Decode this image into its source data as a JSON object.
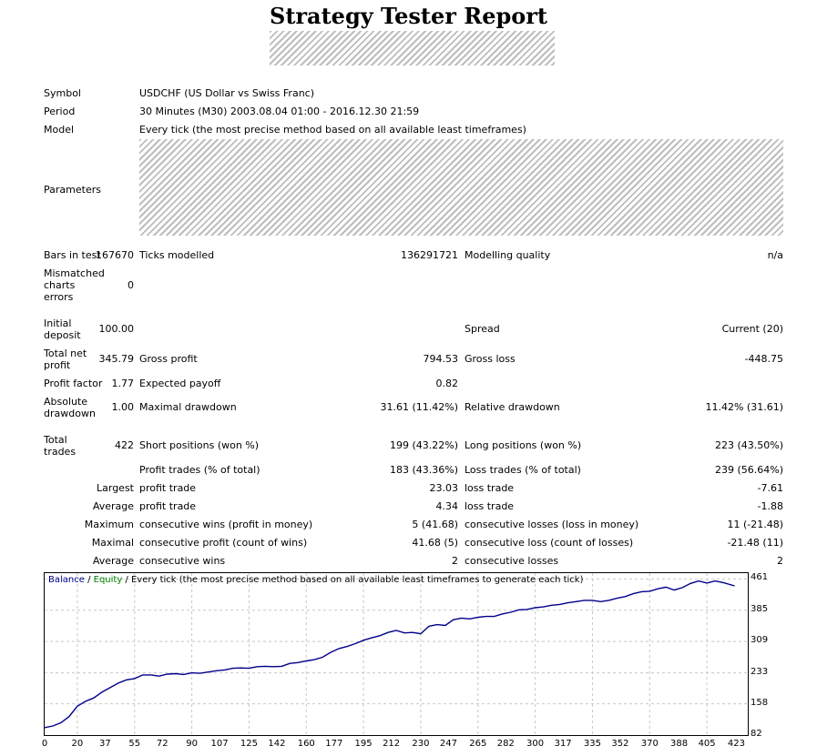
{
  "title": "Strategy Tester Report",
  "labels": {
    "symbol": "Symbol",
    "period": "Period",
    "model": "Model",
    "parameters": "Parameters",
    "bars_in_test": "Bars in test",
    "ticks_modelled": "Ticks modelled",
    "modelling_quality": "Modelling quality",
    "mismatched_1": "Mismatched",
    "mismatched_2": "charts",
    "mismatched_3": "errors",
    "initial_deposit_1": "Initial",
    "initial_deposit_2": "deposit",
    "spread": "Spread",
    "total_net_profit_1": "Total net",
    "total_net_profit_2": "profit",
    "gross_profit": "Gross profit",
    "gross_loss": "Gross loss",
    "profit_factor": "Profit factor",
    "expected_payoff": "Expected payoff",
    "absolute_drawdown_1": "Absolute",
    "absolute_drawdown_2": "drawdown",
    "maximal_drawdown": "Maximal drawdown",
    "relative_drawdown": "Relative drawdown",
    "total_trades_1": "Total",
    "total_trades_2": "trades",
    "short_positions": "Short positions (won %)",
    "long_positions": "Long positions (won %)",
    "profit_trades": "Profit trades (% of total)",
    "loss_trades": "Loss trades (% of total)",
    "largest": "Largest",
    "average": "Average",
    "maximum": "Maximum",
    "maximal": "Maximal",
    "profit_trade": "profit trade",
    "loss_trade": "loss trade",
    "consecutive_wins_money": "consecutive wins (profit in money)",
    "consecutive_losses_money": "consecutive losses (loss in money)",
    "consecutive_profit_count": "consecutive profit (count of wins)",
    "consecutive_loss_count": "consecutive loss (count of losses)",
    "consecutive_wins": "consecutive wins",
    "consecutive_losses": "consecutive losses"
  },
  "values": {
    "symbol": "USDCHF (US Dollar vs Swiss Franc)",
    "period": "30 Minutes (M30) 2003.08.04 01:00 - 2016.12.30 21:59",
    "model": "Every tick (the most precise method based on all available least timeframes)",
    "bars_in_test": "167670",
    "ticks_modelled": "136291721",
    "modelling_quality": "n/a",
    "mismatched": "0",
    "initial_deposit": "100.00",
    "spread": "Current (20)",
    "total_net_profit": "345.79",
    "gross_profit": "794.53",
    "gross_loss": "-448.75",
    "profit_factor": "1.77",
    "expected_payoff": "0.82",
    "absolute_drawdown": "1.00",
    "maximal_drawdown": "31.61 (11.42%)",
    "relative_drawdown": "11.42% (31.61)",
    "total_trades": "422",
    "short_positions": "199 (43.22%)",
    "long_positions": "223 (43.50%)",
    "profit_trades": "183 (43.36%)",
    "loss_trades": "239 (56.64%)",
    "largest_profit": "23.03",
    "largest_loss": "-7.61",
    "average_profit": "4.34",
    "average_loss": "-1.88",
    "max_consec_wins": "5 (41.68)",
    "max_consec_losses": "11 (-21.48)",
    "maximal_consec_profit": "41.68 (5)",
    "maximal_consec_loss": "-21.48 (11)",
    "avg_consec_wins": "2",
    "avg_consec_losses": "2"
  },
  "chart": {
    "legend_balance": "Balance",
    "legend_sep1": " / ",
    "legend_equity": "Equity",
    "legend_rest": " / Every tick (the most precise method based on all available least timeframes to generate each tick)",
    "colors": {
      "balance": "#00008b",
      "equity": "#008000",
      "grid": "#c8c8c8"
    }
  },
  "chart_data": {
    "type": "line",
    "title": "",
    "xlabel": "",
    "ylabel": "",
    "x_ticks": [
      0,
      20,
      37,
      55,
      72,
      90,
      107,
      125,
      142,
      160,
      177,
      195,
      212,
      230,
      247,
      265,
      282,
      300,
      317,
      335,
      352,
      370,
      388,
      405,
      423
    ],
    "y_ticks": [
      82,
      158,
      233,
      309,
      385,
      461
    ],
    "xlim": [
      0,
      430
    ],
    "ylim": [
      82,
      475
    ],
    "grid": true,
    "series": [
      {
        "name": "Balance",
        "x": [
          0,
          5,
          10,
          15,
          20,
          25,
          30,
          35,
          40,
          45,
          50,
          55,
          60,
          65,
          70,
          75,
          80,
          85,
          90,
          95,
          100,
          105,
          110,
          115,
          120,
          125,
          130,
          135,
          140,
          145,
          150,
          155,
          160,
          165,
          170,
          175,
          180,
          185,
          190,
          195,
          200,
          205,
          210,
          215,
          220,
          225,
          230,
          235,
          240,
          245,
          250,
          255,
          260,
          265,
          270,
          275,
          280,
          285,
          290,
          295,
          300,
          305,
          310,
          315,
          320,
          325,
          330,
          335,
          340,
          345,
          350,
          355,
          360,
          365,
          370,
          375,
          380,
          385,
          390,
          395,
          400,
          405,
          410,
          415,
          422
        ],
        "y": [
          100,
          104,
          112,
          127,
          152,
          164,
          172,
          186,
          197,
          208,
          216,
          219,
          228,
          228,
          225,
          230,
          231,
          229,
          233,
          232,
          235,
          238,
          240,
          244,
          245,
          244,
          248,
          249,
          248,
          249,
          256,
          258,
          262,
          265,
          271,
          283,
          292,
          297,
          304,
          312,
          318,
          323,
          331,
          336,
          330,
          331,
          328,
          346,
          350,
          348,
          362,
          366,
          364,
          368,
          370,
          370,
          376,
          380,
          386,
          387,
          391,
          393,
          397,
          399,
          403,
          406,
          409,
          409,
          406,
          409,
          414,
          418,
          425,
          430,
          431,
          437,
          441,
          434,
          440,
          450,
          456,
          451,
          456,
          452,
          444
        ]
      }
    ]
  }
}
